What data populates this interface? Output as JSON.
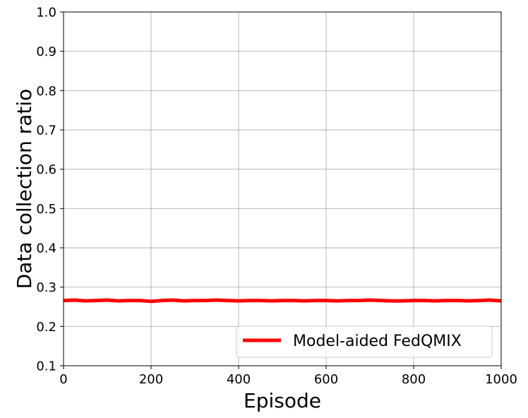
{
  "chart_data": {
    "type": "line",
    "title": "",
    "xlabel": "Episode",
    "ylabel": "Data collection ratio",
    "xlim": [
      0,
      1000
    ],
    "ylim": [
      0.1,
      1.0
    ],
    "xticks": [
      0,
      200,
      400,
      600,
      800,
      1000
    ],
    "yticks": [
      0.1,
      0.2,
      0.3,
      0.4,
      0.5,
      0.6,
      0.7,
      0.8,
      0.9,
      1.0
    ],
    "xtick_labels": [
      "0",
      "200",
      "400",
      "600",
      "800",
      "1000"
    ],
    "ytick_labels": [
      "0.1",
      "0.2",
      "0.3",
      "0.4",
      "0.5",
      "0.6",
      "0.7",
      "0.8",
      "0.9",
      "1.0"
    ],
    "grid": true,
    "legend_position": "lower-right",
    "series": [
      {
        "name": "Model-aided FedQMIX",
        "color": "#ff0000",
        "x": [
          0,
          25,
          50,
          75,
          100,
          125,
          150,
          175,
          200,
          225,
          250,
          275,
          300,
          325,
          350,
          375,
          400,
          425,
          450,
          475,
          500,
          525,
          550,
          575,
          600,
          625,
          650,
          675,
          700,
          725,
          750,
          775,
          800,
          825,
          850,
          875,
          900,
          925,
          950,
          975,
          1000
        ],
        "y": [
          0.266,
          0.267,
          0.265,
          0.266,
          0.267,
          0.265,
          0.266,
          0.266,
          0.264,
          0.266,
          0.267,
          0.265,
          0.266,
          0.266,
          0.267,
          0.266,
          0.265,
          0.266,
          0.266,
          0.265,
          0.266,
          0.266,
          0.265,
          0.266,
          0.266,
          0.265,
          0.266,
          0.266,
          0.267,
          0.266,
          0.265,
          0.265,
          0.266,
          0.266,
          0.265,
          0.266,
          0.266,
          0.265,
          0.266,
          0.267,
          0.265
        ]
      }
    ]
  }
}
